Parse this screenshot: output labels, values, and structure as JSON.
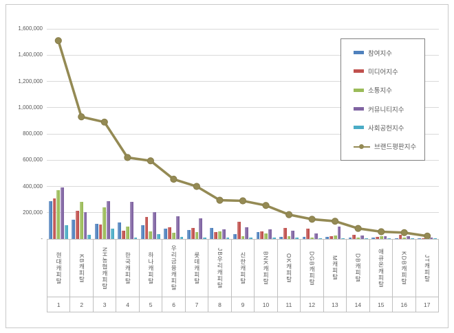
{
  "page": {
    "background": "#ffffff",
    "frame_border_color": "#c8c8c8",
    "text_color": "#595959",
    "gridline_color": "#d9d9d9",
    "axis_border_color": "#bfbfbf"
  },
  "chart_data": {
    "type": "bar+line",
    "title": "",
    "grid": "horizontal",
    "categories": [
      "현대캐피탈",
      "KB캐피탈",
      "NH농협캐피탈",
      "한국캐피탈",
      "하나캐피탈",
      "우리금융캐피탈",
      "롯데캐피탈",
      "JB우리캐피탈",
      "신한캐피탈",
      "BNK캐피탈",
      "OK캐피탈",
      "DGB캐피탈",
      "M캐피탈",
      "DB캐피탈",
      "애큐온캐피탈",
      "KDB캐피탈",
      "JT캐피탈"
    ],
    "ranks": [
      "1",
      "2",
      "3",
      "4",
      "5",
      "6",
      "7",
      "8",
      "9",
      "10",
      "11",
      "12",
      "13",
      "14",
      "15",
      "16",
      "17"
    ],
    "bar_series": [
      {
        "name": "참여지수",
        "color": "#4F81BD",
        "values": [
          290000,
          145000,
          115000,
          125000,
          105000,
          78000,
          68000,
          85000,
          35000,
          50000,
          15000,
          15000,
          15000,
          8000,
          10000,
          6000,
          3000
        ]
      },
      {
        "name": "미디어지수",
        "color": "#C0504D",
        "values": [
          310000,
          215000,
          110000,
          65000,
          165000,
          88000,
          84000,
          52000,
          130000,
          55000,
          85000,
          79000,
          20000,
          33000,
          15000,
          31000,
          4000
        ]
      },
      {
        "name": "소통지수",
        "color": "#9BBB59",
        "values": [
          370000,
          280000,
          240000,
          95000,
          55000,
          46000,
          53000,
          60000,
          22000,
          40000,
          20000,
          10000,
          27000,
          13000,
          19000,
          9000,
          3000
        ]
      },
      {
        "name": "커뮤니티지수",
        "color": "#8064A2",
        "values": [
          390000,
          205000,
          290000,
          283000,
          205000,
          175000,
          158000,
          75000,
          88000,
          72000,
          65000,
          41000,
          96000,
          27000,
          22000,
          19000,
          8000
        ]
      },
      {
        "name": "사회공헌지수",
        "color": "#4BACC6",
        "values": [
          105000,
          30000,
          80000,
          12000,
          38000,
          16000,
          10000,
          12000,
          12000,
          12000,
          8000,
          5000,
          7000,
          5000,
          5000,
          4000,
          2000
        ]
      }
    ],
    "line_series": {
      "name": "브랜드평판지수",
      "color": "#948A54",
      "marker_border_color": "#877d4a",
      "values": [
        1510000,
        930000,
        890000,
        620000,
        595000,
        455000,
        400000,
        295000,
        290000,
        255000,
        185000,
        150000,
        135000,
        80000,
        55000,
        48000,
        22000
      ]
    },
    "y_axis": {
      "min": 0,
      "max": 1600000,
      "tick_interval": 200000,
      "tick_labels": [
        "-",
        "200,000",
        "400,000",
        "600,000",
        "800,000",
        "1,000,000",
        "1,200,000",
        "1,400,000",
        "1,600,000"
      ]
    },
    "legend": {
      "position": "top-right",
      "entries": [
        "참여지수",
        "미디어지수",
        "소통지수",
        "커뮤니티지수",
        "사회공헌지수",
        "브랜드평판지수"
      ]
    }
  }
}
